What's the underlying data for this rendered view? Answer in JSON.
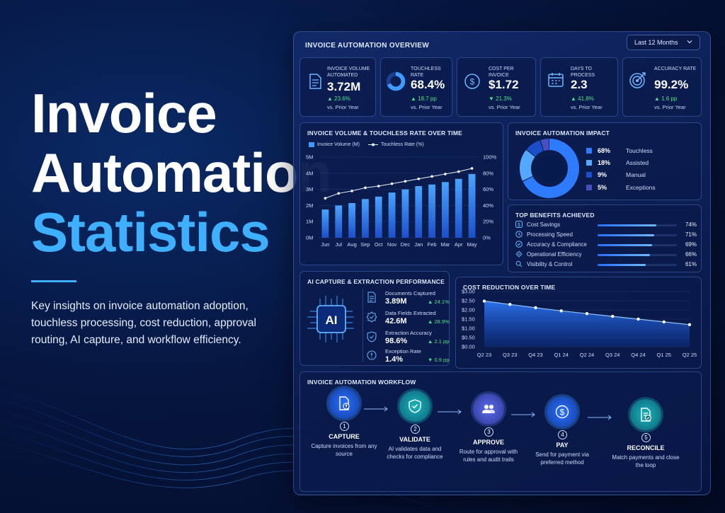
{
  "hero": {
    "title_line1": "Invoice",
    "title_line2": "Automation",
    "title_line3": "Statistics",
    "description": "Key insights on invoice automation adoption, touchless processing, cost reduction, approval routing, AI capture, and workflow efficiency."
  },
  "dashboard": {
    "title": "INVOICE AUTOMATION OVERVIEW",
    "period_select": "Last 12 Months"
  },
  "kpis": [
    {
      "label": "INVOICE VOLUME AUTOMATED",
      "value": "3.72M",
      "change": "▲ 23.6%",
      "sub": "vs. Prior Year",
      "icon": "document-icon"
    },
    {
      "label": "TOUCHLESS RATE",
      "value": "68.4%",
      "change": "▲ 18.7 pp",
      "sub": "vs. Prior Year",
      "icon": "donut-icon"
    },
    {
      "label": "COST PER INVOICE",
      "value": "$1.72",
      "change": "▼ 21.3%",
      "sub": "vs. Prior Year",
      "icon": "dollar-icon"
    },
    {
      "label": "DAYS TO PROCESS",
      "value": "2.3",
      "change": "▲ 41.8%",
      "sub": "vs. Prior Year",
      "icon": "calendar-icon"
    },
    {
      "label": "ACCURACY RATE",
      "value": "99.2%",
      "change": "▲ 1.6 pp",
      "sub": "vs. Prior Year",
      "icon": "target-icon"
    }
  ],
  "volume_chart": {
    "title": "INVOICE VOLUME & TOUCHLESS RATE OVER TIME",
    "legend_bar": "Invoice Volume (M)",
    "legend_line": "Touchless Rate (%)",
    "y_left_ticks": [
      "0M",
      "1M",
      "2M",
      "3M",
      "4M",
      "5M"
    ],
    "y_right_ticks": [
      "0%",
      "20%",
      "40%",
      "60%",
      "80%",
      "100%"
    ]
  },
  "impact": {
    "title": "INVOICE AUTOMATION IMPACT",
    "items": [
      {
        "pct": "68%",
        "label": "Touchless",
        "value": 68,
        "color": "#2f7bff"
      },
      {
        "pct": "18%",
        "label": "Assisted",
        "value": 18,
        "color": "#55a8ff"
      },
      {
        "pct": "9%",
        "label": "Manual",
        "value": 9,
        "color": "#1a4fc9"
      },
      {
        "pct": "5%",
        "label": "Exceptions",
        "value": 5,
        "color": "#4a4fc0"
      }
    ]
  },
  "benefits": {
    "title": "TOP BENEFITS ACHIEVED",
    "items": [
      {
        "label": "Cost Savings",
        "value": "74%",
        "fraction": 0.74,
        "icon": "dollar-icon"
      },
      {
        "label": "Processing Speed",
        "value": "71%",
        "fraction": 0.71,
        "icon": "clock-icon"
      },
      {
        "label": "Accuracy & Compliance",
        "value": "69%",
        "fraction": 0.69,
        "icon": "check-icon"
      },
      {
        "label": "Operational Efficiency",
        "value": "66%",
        "fraction": 0.66,
        "icon": "gear-icon"
      },
      {
        "label": "Visibility & Control",
        "value": "61%",
        "fraction": 0.61,
        "icon": "search-icon"
      }
    ]
  },
  "ai_capture": {
    "title": "AI CAPTURE & EXTRACTION PERFORMANCE",
    "chip_label": "AI",
    "items": [
      {
        "label": "Documents Captured",
        "value": "3.89M",
        "change": "▲ 24.1%",
        "icon": "document-icon"
      },
      {
        "label": "Data Fields Extracted",
        "value": "42.6M",
        "change": "▲ 28.9%",
        "icon": "check-badge-icon"
      },
      {
        "label": "Extraction Accuracy",
        "value": "98.6%",
        "change": "▲ 2.1 pp",
        "icon": "shield-icon"
      },
      {
        "label": "Exception Rate",
        "value": "1.4%",
        "change": "▼ 0.9 pp",
        "icon": "alert-icon"
      }
    ]
  },
  "cost_chart": {
    "title": "COST REDUCTION OVER TIME",
    "y_ticks": [
      "$0.00",
      "$0.50",
      "$1.00",
      "$1.50",
      "$2.00",
      "$2.50",
      "$3.00"
    ]
  },
  "workflow": {
    "title": "INVOICE AUTOMATION WORKFLOW",
    "steps": [
      {
        "num": "1",
        "name": "CAPTURE",
        "desc": "Capture invoices from any source",
        "icon": "upload-document-icon",
        "color": "#1f5fd6"
      },
      {
        "num": "2",
        "name": "VALIDATE",
        "desc": "AI validates data and checks for compliance",
        "icon": "shield-check-icon",
        "color": "#12a3a8"
      },
      {
        "num": "3",
        "name": "APPROVE",
        "desc": "Route for approval with rules and audit trails",
        "icon": "users-icon",
        "color": "#4a5bd8"
      },
      {
        "num": "4",
        "name": "PAY",
        "desc": "Send for payment via preferred method",
        "icon": "dollar-icon",
        "color": "#1f5fd6"
      },
      {
        "num": "5",
        "name": "RECONCILE",
        "desc": "Match payments and close the loop",
        "icon": "reconcile-document-icon",
        "color": "#12a3a8"
      }
    ]
  },
  "chart_data": [
    {
      "type": "bar",
      "title": "INVOICE VOLUME & TOUCHLESS RATE OVER TIME",
      "categories": [
        "Jun",
        "Jul",
        "Aug",
        "Sep",
        "Oct",
        "Nov",
        "Dec",
        "Jan",
        "Feb",
        "Mar",
        "Apr",
        "May"
      ],
      "series": [
        {
          "name": "Invoice Volume (M)",
          "type": "bar",
          "axis": "left",
          "values": [
            1.75,
            2.0,
            2.15,
            2.4,
            2.55,
            2.8,
            3.0,
            3.2,
            3.3,
            3.45,
            3.65,
            3.95
          ]
        },
        {
          "name": "Touchless Rate (%)",
          "type": "line",
          "axis": "right",
          "values": [
            49,
            55,
            58,
            62,
            64,
            67,
            70,
            73,
            76,
            79,
            82,
            86
          ]
        }
      ],
      "ylim_left": [
        0,
        5
      ],
      "ylim_right": [
        0,
        100
      ],
      "legend": "top-left",
      "grid": true
    },
    {
      "type": "pie",
      "title": "INVOICE AUTOMATION IMPACT",
      "categories": [
        "Touchless",
        "Assisted",
        "Manual",
        "Exceptions"
      ],
      "values": [
        68,
        18,
        9,
        5
      ]
    },
    {
      "type": "area",
      "title": "COST REDUCTION OVER TIME",
      "categories": [
        "Q2 23",
        "Q3 23",
        "Q4 23",
        "Q1 24",
        "Q2 24",
        "Q3 24",
        "Q4 24",
        "Q1 25",
        "Q2 25"
      ],
      "values": [
        2.48,
        2.3,
        2.12,
        1.95,
        1.8,
        1.65,
        1.5,
        1.35,
        1.2
      ],
      "ylim": [
        0,
        3
      ],
      "grid": true
    }
  ]
}
